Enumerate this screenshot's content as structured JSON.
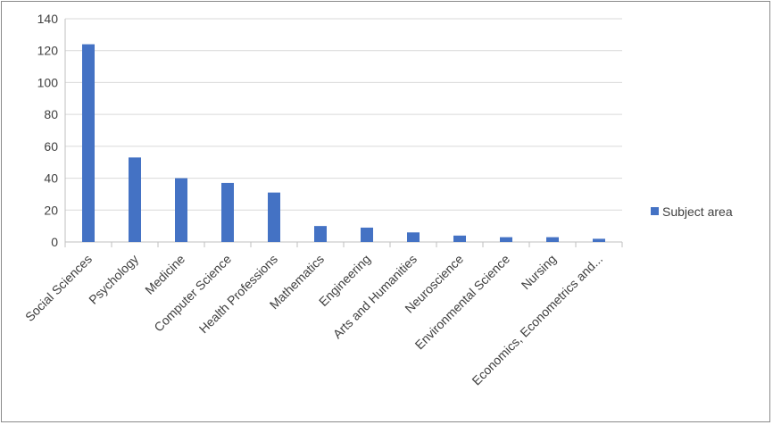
{
  "chart_data": {
    "type": "bar",
    "categories": [
      "Social Sciences",
      "Psychology",
      "Medicine",
      "Computer Science",
      "Health Professions",
      "Mathematics",
      "Engineering",
      "Arts and Humanities",
      "Neuroscience",
      "Environmental Science",
      "Nursing",
      "Economics, Econometrics and..."
    ],
    "series": [
      {
        "name": "Subject area",
        "values": [
          124,
          53,
          40,
          37,
          31,
          10,
          9,
          6,
          4,
          3,
          3,
          2
        ],
        "color": "#4472C4"
      }
    ],
    "ylim": [
      0,
      140
    ],
    "yticks": [
      0,
      20,
      40,
      60,
      80,
      100,
      120,
      140
    ],
    "grid": true,
    "legend": "right"
  }
}
